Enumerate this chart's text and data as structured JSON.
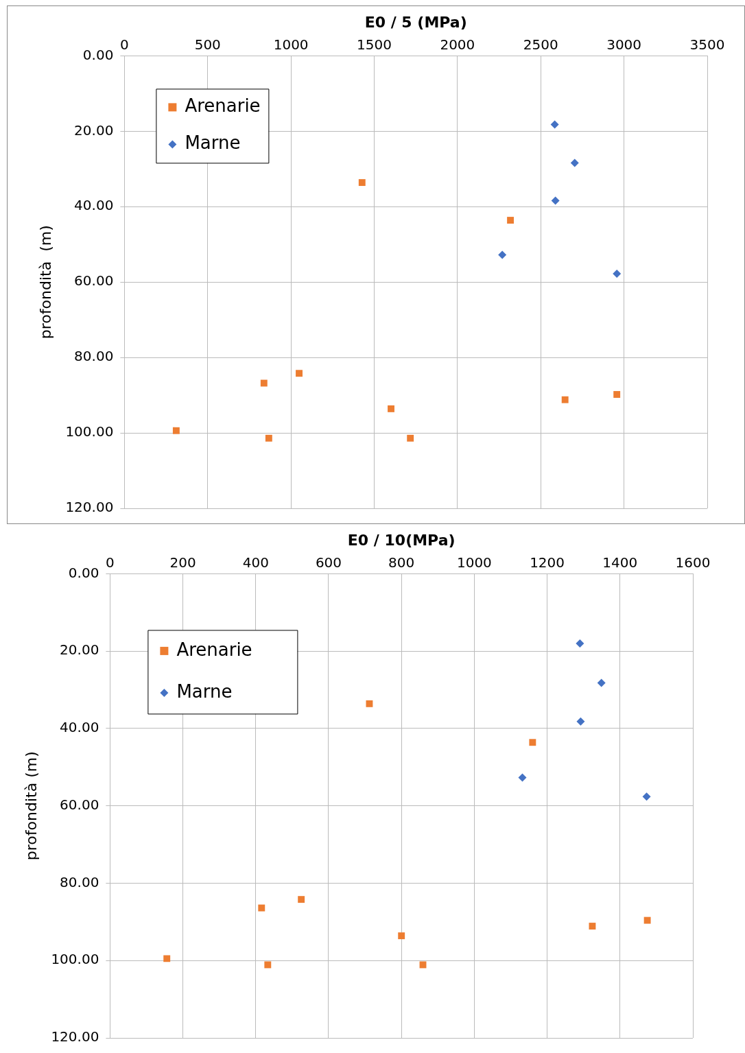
{
  "chart_data": [
    {
      "type": "scatter",
      "xlabel": "E0 / 5 (MPa)",
      "ylabel": "profondità  (m)",
      "xlim": [
        0,
        3500
      ],
      "xticks": [
        0,
        500,
        1000,
        1500,
        2000,
        2500,
        3000,
        3500
      ],
      "ylim": [
        120,
        0
      ],
      "yticks": [
        {
          "value": 0,
          "label": "0.00"
        },
        {
          "value": 20,
          "label": "20.00"
        },
        {
          "value": 40,
          "label": "40.00"
        },
        {
          "value": 60,
          "label": "60.00"
        },
        {
          "value": 80,
          "label": "80.00"
        },
        {
          "value": 100,
          "label": "100.00"
        },
        {
          "value": 120,
          "label": "120.00"
        }
      ],
      "grid": true,
      "legend": "top left",
      "series": [
        {
          "name": "Arenarie",
          "color": "#ed7d31",
          "marker": "square",
          "x": [
            1427,
            2318,
            1049,
            838,
            311,
            867,
            1601,
            1717,
            2646,
            2957
          ],
          "values": [
            33.6,
            43.6,
            84.2,
            86.8,
            99.4,
            101.4,
            93.6,
            101.4,
            91.2,
            89.8
          ]
        },
        {
          "name": "Marne",
          "color": "#4472c4",
          "marker": "diamond",
          "x": [
            2584,
            2704,
            2588,
            2269,
            2957
          ],
          "values": [
            18.2,
            28.4,
            38.4,
            52.8,
            57.8
          ]
        }
      ]
    },
    {
      "type": "scatter",
      "xlabel": "E0 / 10(MPa)",
      "ylabel": "profondità (m)",
      "xlim": [
        0,
        1600
      ],
      "xticks": [
        0,
        200,
        400,
        600,
        800,
        1000,
        1200,
        1400,
        1600
      ],
      "ylim": [
        120,
        0
      ],
      "yticks": [
        {
          "value": 0,
          "label": "0.00"
        },
        {
          "value": 20,
          "label": "20.00"
        },
        {
          "value": 40,
          "label": "40.00"
        },
        {
          "value": 60,
          "label": "60.00"
        },
        {
          "value": 80,
          "label": "80.00"
        },
        {
          "value": 100,
          "label": "100.00"
        },
        {
          "value": 120,
          "label": "120.00"
        }
      ],
      "grid": true,
      "legend": "top left",
      "series": [
        {
          "name": "Arenarie",
          "color": "#ed7d31",
          "marker": "square",
          "x": [
            712,
            1160,
            525,
            416,
            156,
            433,
            800,
            859,
            1324,
            1475
          ],
          "values": [
            33.6,
            43.6,
            84.2,
            86.4,
            99.5,
            101.1,
            93.6,
            101.1,
            91.1,
            89.6
          ]
        },
        {
          "name": "Marne",
          "color": "#4472c4",
          "marker": "diamond",
          "x": [
            1290,
            1349,
            1292,
            1132,
            1473
          ],
          "values": [
            18.0,
            28.2,
            38.2,
            52.7,
            57.6
          ]
        }
      ]
    }
  ]
}
